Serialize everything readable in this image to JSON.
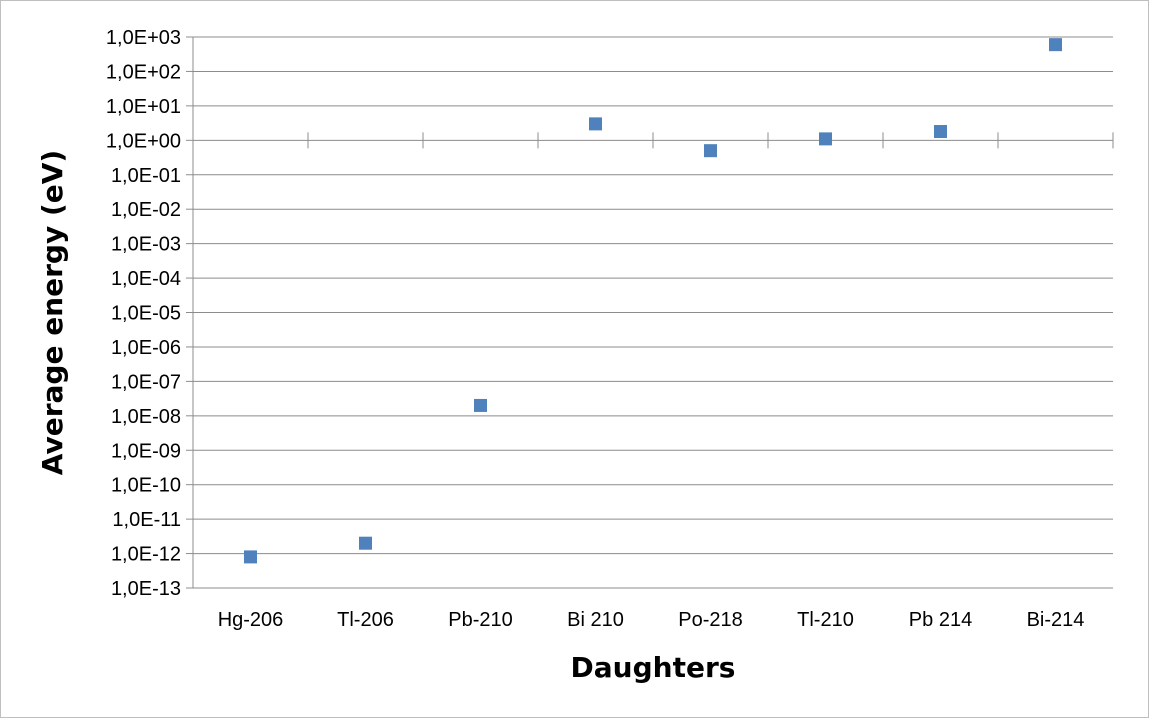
{
  "chart_data": {
    "type": "scatter",
    "title": "",
    "xlabel": "Daughters",
    "ylabel": "Average energy (eV)",
    "y_scale": "log",
    "ylim": [
      1e-13,
      1000
    ],
    "y_tick_labels": [
      "1,0E+03",
      "1,0E+02",
      "1,0E+01",
      "1,0E+00",
      "1,0E-01",
      "1,0E-02",
      "1,0E-03",
      "1,0E-04",
      "1,0E-05",
      "1,0E-06",
      "1,0E-07",
      "1,0E-08",
      "1,0E-09",
      "1,0E-10",
      "1,0E-11",
      "1,0E-12",
      "1,0E-13"
    ],
    "categories": [
      "Hg-206",
      "Tl-206",
      "Pb-210",
      "Bi 210",
      "Po-218",
      "Tl-210",
      "Pb 214",
      "Bi-214"
    ],
    "values": [
      8e-13,
      2e-12,
      2e-08,
      3,
      0.5,
      1.1,
      1.8,
      600
    ],
    "marker_color": "#4f81bd",
    "gridlines": true,
    "legend": "none"
  }
}
